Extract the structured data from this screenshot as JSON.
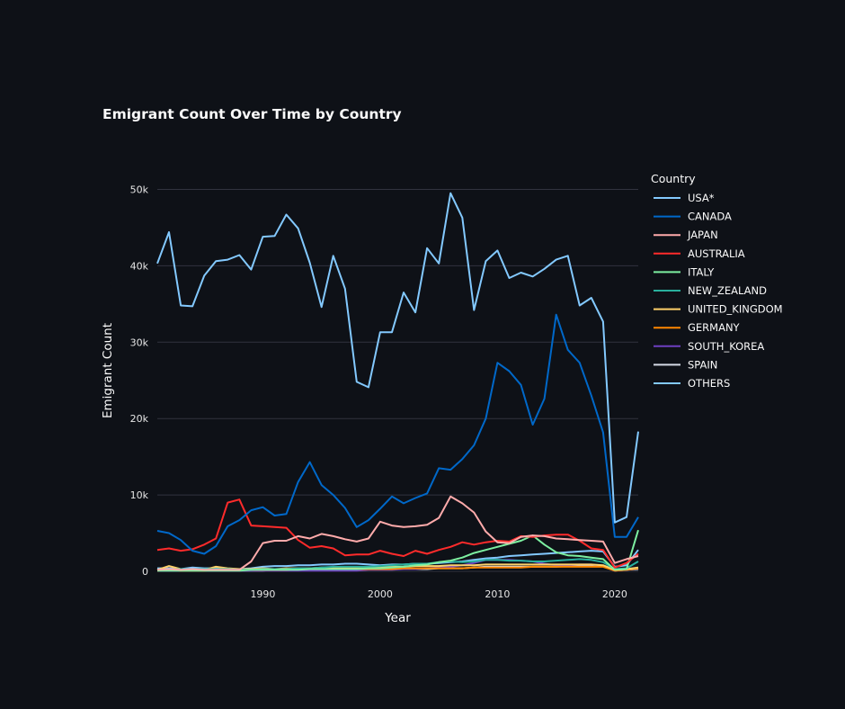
{
  "chart_data": {
    "type": "line",
    "title": "Emigrant Count Over Time by Country",
    "xlabel": "Year",
    "ylabel": "Emigrant Count",
    "legend_title": "Country",
    "legend_position": "right",
    "xlim": [
      1981,
      2022
    ],
    "ylim": [
      0,
      53000
    ],
    "x_ticks": [
      1990,
      2000,
      2010,
      2020
    ],
    "y_ticks": [
      0,
      10000,
      20000,
      30000,
      40000,
      50000
    ],
    "y_tick_labels": [
      "0",
      "10k",
      "20k",
      "30k",
      "40k",
      "50k"
    ],
    "x": [
      1981,
      1982,
      1983,
      1984,
      1985,
      1986,
      1987,
      1988,
      1989,
      1990,
      1991,
      1992,
      1993,
      1994,
      1995,
      1996,
      1997,
      1998,
      1999,
      2000,
      2001,
      2002,
      2003,
      2004,
      2005,
      2006,
      2007,
      2008,
      2009,
      2010,
      2011,
      2012,
      2013,
      2014,
      2015,
      2016,
      2017,
      2018,
      2019,
      2020,
      2021,
      2022
    ],
    "series": [
      {
        "name": "USA*",
        "color": "#83c9ff",
        "values": [
          40300,
          44400,
          34800,
          34700,
          38700,
          40600,
          40800,
          41400,
          39500,
          43800,
          43900,
          46700,
          44900,
          40400,
          34600,
          41300,
          37000,
          24800,
          24100,
          31300,
          31300,
          36500,
          33900,
          42300,
          40300,
          49500,
          46300,
          34200,
          40600,
          42000,
          38400,
          39100,
          38600,
          39600,
          40800,
          41300,
          34800,
          35800,
          32700,
          6400,
          7100,
          18300
        ]
      },
      {
        "name": "CANADA",
        "color": "#0068c9",
        "values": [
          5300,
          5000,
          4100,
          2700,
          2300,
          3300,
          5900,
          6700,
          8000,
          8400,
          7300,
          7500,
          11700,
          14300,
          11300,
          10000,
          8300,
          5800,
          6700,
          8200,
          9800,
          8900,
          9600,
          10200,
          13500,
          13300,
          14700,
          16500,
          20000,
          27300,
          26200,
          24400,
          19200,
          22600,
          33600,
          29000,
          27300,
          23000,
          18200,
          4500,
          4500,
          7100
        ]
      },
      {
        "name": "JAPAN",
        "color": "#ffabab",
        "values": [
          200,
          300,
          200,
          300,
          200,
          200,
          200,
          200,
          1300,
          3700,
          4000,
          4000,
          4600,
          4300,
          4900,
          4600,
          4200,
          3900,
          4300,
          6500,
          6000,
          5800,
          5900,
          6100,
          7000,
          9800,
          8900,
          7700,
          5200,
          3800,
          3700,
          4500,
          4700,
          4600,
          4300,
          4200,
          4100,
          4000,
          3900,
          1100,
          1600,
          2000
        ]
      },
      {
        "name": "AUSTRALIA",
        "color": "#ff2b2b",
        "values": [
          2800,
          3000,
          2700,
          2900,
          3500,
          4300,
          9000,
          9400,
          6000,
          5900,
          5800,
          5700,
          4100,
          3100,
          3300,
          3000,
          2100,
          2200,
          2200,
          2700,
          2300,
          2000,
          2700,
          2300,
          2800,
          3200,
          3800,
          3500,
          3800,
          4000,
          3900,
          4600,
          4500,
          4700,
          4800,
          4800,
          4000,
          3000,
          2800,
          500,
          1100,
          2300
        ]
      },
      {
        "name": "ITALY",
        "color": "#7defa1",
        "values": [
          100,
          100,
          100,
          100,
          100,
          100,
          100,
          100,
          200,
          200,
          200,
          200,
          200,
          300,
          300,
          300,
          300,
          300,
          400,
          400,
          500,
          600,
          800,
          900,
          1200,
          1400,
          1800,
          2400,
          2800,
          3200,
          3600,
          4000,
          4700,
          3500,
          2500,
          2100,
          2000,
          1800,
          1600,
          200,
          300,
          5400
        ]
      },
      {
        "name": "NEW_ZEALAND",
        "color": "#29b09d",
        "values": [
          200,
          200,
          300,
          300,
          300,
          300,
          300,
          200,
          200,
          300,
          300,
          300,
          400,
          400,
          500,
          600,
          600,
          600,
          600,
          700,
          800,
          900,
          1000,
          1000,
          1200,
          1300,
          1200,
          1300,
          1500,
          1500,
          1400,
          1400,
          1300,
          1300,
          1400,
          1500,
          1600,
          1500,
          1200,
          300,
          400,
          1300
        ]
      },
      {
        "name": "UNITED_KINGDOM",
        "color": "#ffd16a",
        "values": [
          200,
          700,
          300,
          200,
          200,
          600,
          400,
          300,
          300,
          400,
          300,
          400,
          400,
          400,
          500,
          500,
          500,
          500,
          500,
          600,
          600,
          600,
          700,
          700,
          700,
          800,
          800,
          800,
          900,
          900,
          900,
          900,
          900,
          900,
          900,
          900,
          900,
          900,
          800,
          200,
          300,
          500
        ]
      },
      {
        "name": "GERMANY",
        "color": "#ff8700",
        "values": [
          100,
          200,
          100,
          100,
          100,
          200,
          200,
          200,
          200,
          200,
          200,
          200,
          300,
          300,
          300,
          300,
          300,
          300,
          300,
          300,
          300,
          400,
          400,
          400,
          400,
          400,
          400,
          500,
          500,
          500,
          500,
          500,
          600,
          600,
          600,
          600,
          600,
          600,
          600,
          100,
          200,
          400
        ]
      },
      {
        "name": "SOUTH_KOREA",
        "color": "#6d3fc0",
        "values": [
          100,
          100,
          100,
          100,
          100,
          100,
          100,
          100,
          100,
          100,
          100,
          100,
          100,
          100,
          100,
          100,
          100,
          100,
          200,
          200,
          200,
          300,
          300,
          400,
          500,
          600,
          800,
          1100,
          1500,
          1500,
          1500,
          1400,
          1300,
          1000,
          800,
          800,
          900,
          900,
          700,
          100,
          200,
          400
        ]
      },
      {
        "name": "SPAIN",
        "color": "#d5dae5",
        "values": [
          100,
          100,
          100,
          100,
          100,
          100,
          100,
          100,
          100,
          100,
          200,
          200,
          200,
          200,
          200,
          200,
          200,
          200,
          300,
          300,
          300,
          300,
          300,
          300,
          400,
          400,
          400,
          500,
          600,
          600,
          600,
          600,
          600,
          600,
          600,
          700,
          700,
          700,
          700,
          100,
          200,
          300
        ]
      },
      {
        "name": "OTHERS",
        "color": "#83c9ff",
        "values": [
          400,
          400,
          300,
          500,
          400,
          400,
          300,
          300,
          400,
          600,
          700,
          700,
          800,
          800,
          900,
          900,
          1000,
          1000,
          900,
          800,
          900,
          900,
          1000,
          1000,
          1100,
          1200,
          1300,
          1500,
          1700,
          1800,
          2000,
          2100,
          2200,
          2300,
          2400,
          2500,
          2600,
          2700,
          2600,
          600,
          800,
          2800
        ]
      }
    ]
  }
}
